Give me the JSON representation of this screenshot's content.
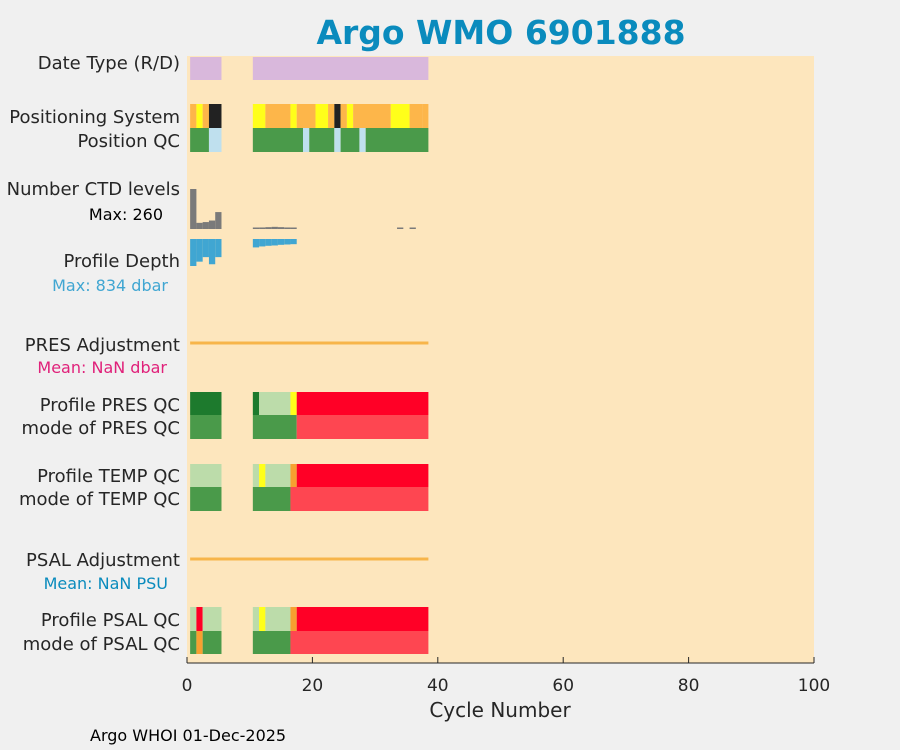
{
  "chart_data": {
    "type": "heatmap",
    "title": "Argo WMO 6901888",
    "xlabel": "Cycle Number",
    "xlim": [
      0,
      100
    ],
    "xticks": [
      0,
      20,
      40,
      60,
      80,
      100
    ],
    "grid": false,
    "footer": "Argo WHOI 01-Dec-2025",
    "colors": {
      "title": "#0a8bbd",
      "background": "#fde6bd",
      "datetype": "#d9b8dc",
      "pos_yellow": "#ffff1a",
      "pos_orange": "#fdb64a",
      "pos_black": "#222222",
      "qc_green": "#4a9a4a",
      "qc_darkgreen": "#1d7a2d",
      "qc_lightgreen": "#bcdcaa",
      "qc_lightblue": "#bfe0ee",
      "qc_red": "#ff0026",
      "qc_red_mode": "#fe4651",
      "qc_orange": "#f7a030",
      "ctd": "#7a7a7a",
      "depth": "#40a6d2",
      "adjust_line": "#f7b54a",
      "pres_mean": "#e0217a",
      "psal_mean": "#0a8bbd"
    },
    "rows": [
      {
        "label": "Date Type (R/D)",
        "segments": [
          {
            "x0": 0.5,
            "x1": 5.5,
            "color": "datetype"
          },
          {
            "x0": 10.5,
            "x1": 38.5,
            "color": "datetype"
          }
        ]
      },
      {
        "label": "Positioning System",
        "segments": [
          {
            "x0": 0.5,
            "x1": 1.5,
            "color": "pos_orange"
          },
          {
            "x0": 1.5,
            "x1": 2.5,
            "color": "pos_yellow"
          },
          {
            "x0": 2.5,
            "x1": 3.5,
            "color": "pos_orange"
          },
          {
            "x0": 3.5,
            "x1": 5.5,
            "color": "pos_black"
          },
          {
            "x0": 10.5,
            "x1": 12.5,
            "color": "pos_yellow"
          },
          {
            "x0": 12.5,
            "x1": 16.5,
            "color": "pos_orange"
          },
          {
            "x0": 16.5,
            "x1": 17.5,
            "color": "pos_yellow"
          },
          {
            "x0": 17.5,
            "x1": 20.5,
            "color": "pos_orange"
          },
          {
            "x0": 20.5,
            "x1": 22.5,
            "color": "pos_yellow"
          },
          {
            "x0": 22.5,
            "x1": 23.5,
            "color": "pos_orange"
          },
          {
            "x0": 23.5,
            "x1": 24.5,
            "color": "pos_black"
          },
          {
            "x0": 24.5,
            "x1": 25.5,
            "color": "pos_orange"
          },
          {
            "x0": 25.5,
            "x1": 26.5,
            "color": "pos_yellow"
          },
          {
            "x0": 26.5,
            "x1": 32.5,
            "color": "pos_orange"
          },
          {
            "x0": 32.5,
            "x1": 35.5,
            "color": "pos_yellow"
          },
          {
            "x0": 35.5,
            "x1": 37.5,
            "color": "pos_orange"
          },
          {
            "x0": 37.5,
            "x1": 38.5,
            "color": "pos_orange"
          }
        ]
      },
      {
        "label": "Position QC",
        "segments": [
          {
            "x0": 0.5,
            "x1": 3.5,
            "color": "qc_green"
          },
          {
            "x0": 3.5,
            "x1": 5.5,
            "color": "qc_lightblue"
          },
          {
            "x0": 10.5,
            "x1": 18.5,
            "color": "qc_green"
          },
          {
            "x0": 18.5,
            "x1": 19.5,
            "color": "qc_lightblue"
          },
          {
            "x0": 19.5,
            "x1": 23.5,
            "color": "qc_green"
          },
          {
            "x0": 23.5,
            "x1": 24.5,
            "color": "qc_lightblue"
          },
          {
            "x0": 24.5,
            "x1": 27.5,
            "color": "qc_green"
          },
          {
            "x0": 27.5,
            "x1": 28.5,
            "color": "qc_lightblue"
          },
          {
            "x0": 28.5,
            "x1": 38.5,
            "color": "qc_green"
          }
        ]
      },
      {
        "label": "Profile PRES QC",
        "segments": [
          {
            "x0": 0.5,
            "x1": 5.5,
            "color": "qc_darkgreen"
          },
          {
            "x0": 10.5,
            "x1": 11.5,
            "color": "qc_darkgreen"
          },
          {
            "x0": 11.5,
            "x1": 16.5,
            "color": "qc_lightgreen"
          },
          {
            "x0": 16.5,
            "x1": 17.5,
            "color": "pos_yellow"
          },
          {
            "x0": 17.5,
            "x1": 38.5,
            "color": "qc_red"
          }
        ]
      },
      {
        "label": "mode of PRES QC",
        "segments": [
          {
            "x0": 0.5,
            "x1": 5.5,
            "color": "qc_green"
          },
          {
            "x0": 10.5,
            "x1": 17.5,
            "color": "qc_green"
          },
          {
            "x0": 17.5,
            "x1": 38.5,
            "color": "qc_red_mode"
          }
        ]
      },
      {
        "label": "Profile TEMP QC",
        "segments": [
          {
            "x0": 0.5,
            "x1": 5.5,
            "color": "qc_lightgreen"
          },
          {
            "x0": 10.5,
            "x1": 11.5,
            "color": "qc_lightgreen"
          },
          {
            "x0": 11.5,
            "x1": 12.5,
            "color": "pos_yellow"
          },
          {
            "x0": 12.5,
            "x1": 16.5,
            "color": "qc_lightgreen"
          },
          {
            "x0": 16.5,
            "x1": 17.5,
            "color": "qc_orange"
          },
          {
            "x0": 17.5,
            "x1": 38.5,
            "color": "qc_red"
          }
        ]
      },
      {
        "label": "mode of TEMP QC",
        "segments": [
          {
            "x0": 0.5,
            "x1": 5.5,
            "color": "qc_green"
          },
          {
            "x0": 10.5,
            "x1": 16.5,
            "color": "qc_green"
          },
          {
            "x0": 16.5,
            "x1": 38.5,
            "color": "qc_red_mode"
          }
        ]
      },
      {
        "label": "Profile PSAL QC",
        "segments": [
          {
            "x0": 0.5,
            "x1": 1.5,
            "color": "qc_lightgreen"
          },
          {
            "x0": 1.5,
            "x1": 2.5,
            "color": "qc_red"
          },
          {
            "x0": 2.5,
            "x1": 5.5,
            "color": "qc_lightgreen"
          },
          {
            "x0": 10.5,
            "x1": 11.5,
            "color": "qc_lightgreen"
          },
          {
            "x0": 11.5,
            "x1": 12.5,
            "color": "pos_yellow"
          },
          {
            "x0": 12.5,
            "x1": 16.5,
            "color": "qc_lightgreen"
          },
          {
            "x0": 16.5,
            "x1": 17.5,
            "color": "qc_orange"
          },
          {
            "x0": 17.5,
            "x1": 38.5,
            "color": "qc_red"
          }
        ]
      },
      {
        "label": "mode of PSAL QC",
        "segments": [
          {
            "x0": 0.5,
            "x1": 1.5,
            "color": "qc_green"
          },
          {
            "x0": 1.5,
            "x1": 2.5,
            "color": "qc_orange"
          },
          {
            "x0": 2.5,
            "x1": 5.5,
            "color": "qc_green"
          },
          {
            "x0": 10.5,
            "x1": 16.5,
            "color": "qc_green"
          },
          {
            "x0": 16.5,
            "x1": 38.5,
            "color": "qc_red_mode"
          }
        ]
      }
    ],
    "ctd_levels": {
      "label": "Number CTD levels",
      "max_label": "Max: 260",
      "max": 260,
      "cycles": [
        1,
        2,
        3,
        4,
        5,
        11,
        12,
        13,
        14,
        15,
        16,
        17,
        34,
        36
      ],
      "values": [
        260,
        40,
        45,
        55,
        110,
        8,
        10,
        12,
        14,
        12,
        10,
        8,
        6,
        6
      ]
    },
    "profile_depth": {
      "label": "Profile Depth",
      "max_label": "Max:  834 dbar",
      "max": 834,
      "cycles": [
        1,
        2,
        3,
        4,
        5,
        11,
        12,
        13,
        14,
        15,
        16,
        17
      ],
      "values": [
        834,
        700,
        560,
        780,
        560,
        260,
        230,
        210,
        200,
        180,
        170,
        160
      ]
    },
    "pres_adjustment": {
      "label": "PRES Adjustment",
      "mean_label": "Mean:  NaN dbar",
      "x0": 0.5,
      "x1": 38.5
    },
    "psal_adjustment": {
      "label": "PSAL Adjustment",
      "mean_label": "Mean:  NaN PSU",
      "x0": 0.5,
      "x1": 38.5
    }
  }
}
